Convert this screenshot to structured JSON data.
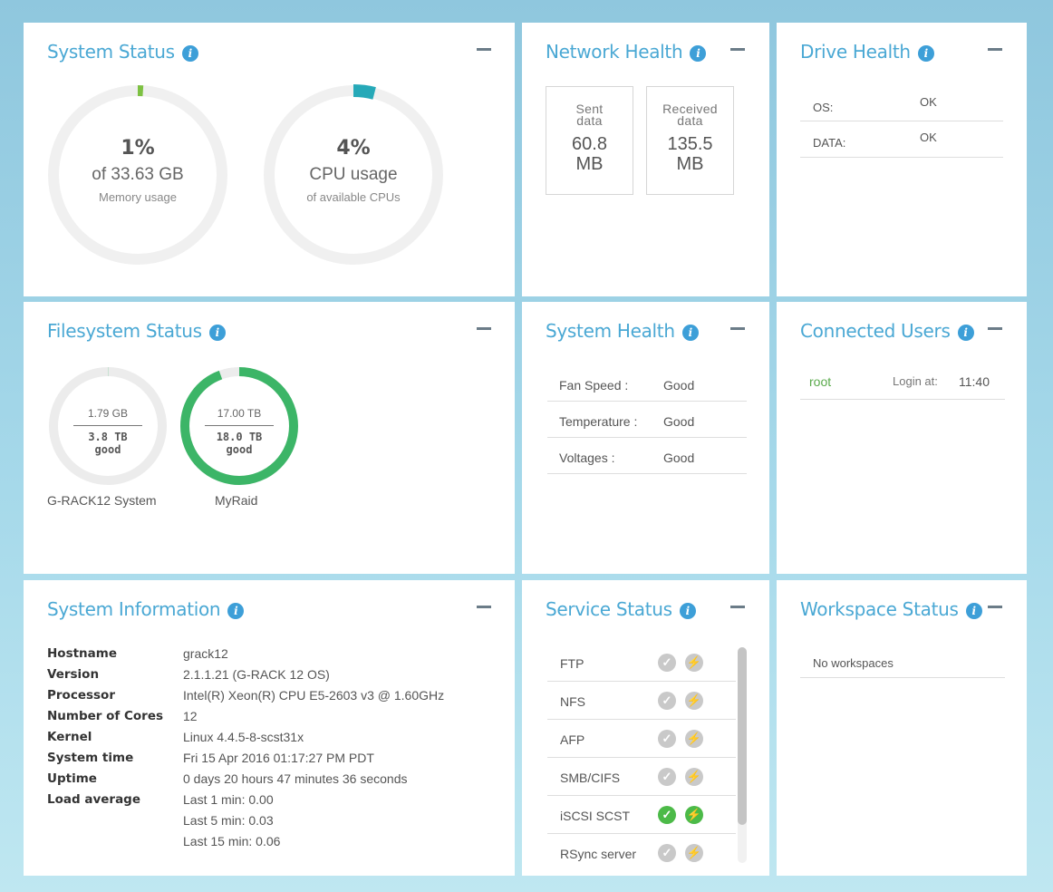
{
  "system_status": {
    "title": "System Status",
    "memory": {
      "percent_label": "1%",
      "sub": "of 33.63 GB",
      "caption": "Memory usage",
      "fraction": 0.01
    },
    "cpu": {
      "percent_label": "4%",
      "sub": "CPU usage",
      "caption": "of available CPUs",
      "fraction": 0.04
    },
    "colors": {
      "memory": "#7dc142",
      "cpu": "#26a9b8",
      "track": "#f0f0f0"
    }
  },
  "network_health": {
    "title": "Network Health",
    "sent": {
      "label_1": "Sent",
      "label_2": "data",
      "value_1": "60.8",
      "value_2": "MB"
    },
    "received": {
      "label_1": "Received",
      "label_2": "data",
      "value_1": "135.5",
      "value_2": "MB"
    }
  },
  "drive_health": {
    "title": "Drive Health",
    "rows": [
      {
        "label": "OS:",
        "value": "OK"
      },
      {
        "label": "DATA:",
        "value": "OK"
      }
    ]
  },
  "filesystem_status": {
    "title": "Filesystem Status",
    "items": [
      {
        "used": "1.79 GB",
        "total": "3.8 TB",
        "state": "good",
        "name": "G-RACK12 System",
        "fraction": 0.0005
      },
      {
        "used": "17.00 TB",
        "total": "18.0 TB",
        "state": "good",
        "name": "MyRaid",
        "fraction": 0.944
      }
    ],
    "colors": {
      "ring": "#3cb567",
      "track": "#ececec"
    }
  },
  "system_health": {
    "title": "System Health",
    "rows": [
      {
        "label": "Fan Speed :",
        "value": "Good"
      },
      {
        "label": "Temperature :",
        "value": "Good"
      },
      {
        "label": "Voltages :",
        "value": "Good"
      }
    ]
  },
  "connected_users": {
    "title": "Connected Users",
    "rows": [
      {
        "user": "root",
        "login_label": "Login at:",
        "time": "11:40"
      }
    ]
  },
  "system_information": {
    "title": "System Information",
    "rows": [
      {
        "label": "Hostname",
        "value": "grack12"
      },
      {
        "label": "Version",
        "value": "2.1.1.21 (G-RACK 12 OS)"
      },
      {
        "label": "Processor",
        "value": "Intel(R) Xeon(R) CPU E5-2603 v3 @ 1.60GHz"
      },
      {
        "label": "Number of Cores",
        "value": "12"
      },
      {
        "label": "Kernel",
        "value": "Linux 4.4.5-8-scst31x"
      },
      {
        "label": "System time",
        "value": "Fri 15 Apr 2016 01:17:27 PM PDT"
      },
      {
        "label": "Uptime",
        "value": "0 days 20 hours 47 minutes 36 seconds"
      },
      {
        "label": "Load average",
        "value": "Last 1 min: 0.00"
      },
      {
        "label": "",
        "value": "Last 5 min: 0.03"
      },
      {
        "label": "",
        "value": "Last 15 min: 0.06"
      }
    ]
  },
  "service_status": {
    "title": "Service Status",
    "rows": [
      {
        "name": "FTP",
        "enabled": false
      },
      {
        "name": "NFS",
        "enabled": false
      },
      {
        "name": "AFP",
        "enabled": false
      },
      {
        "name": "SMB/CIFS",
        "enabled": false
      },
      {
        "name": "iSCSI SCST",
        "enabled": true
      },
      {
        "name": "RSync server",
        "enabled": false
      }
    ],
    "icons": {
      "status": "check-icon",
      "run": "running-man-icon"
    }
  },
  "workspace_status": {
    "title": "Workspace Status",
    "empty_text": "No workspaces"
  },
  "info_glyph": "i"
}
